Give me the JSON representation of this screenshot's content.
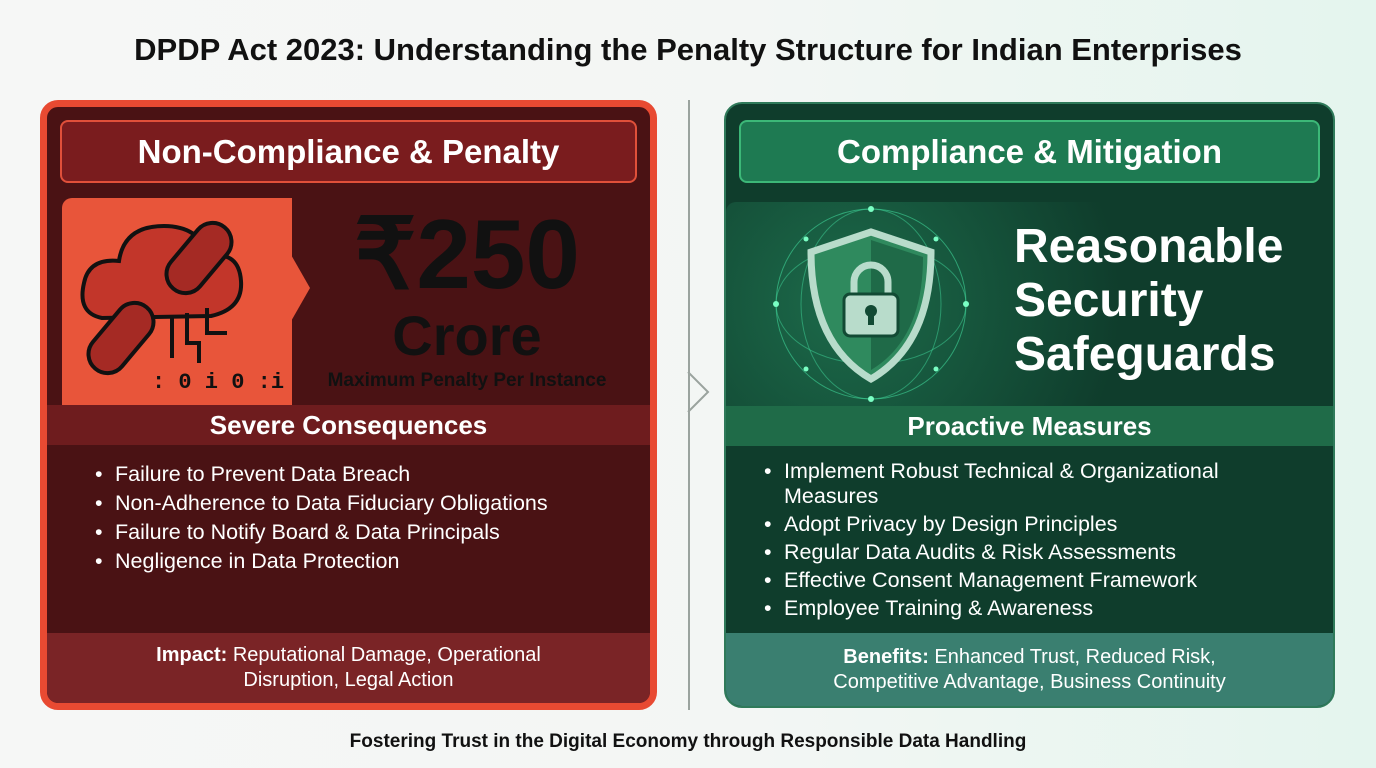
{
  "title": "DPDP Act 2023: Understanding the Penalty Structure for Indian Enterprises",
  "footer": "Fostering Trust in the Digital Economy through Responsible Data Handling",
  "left": {
    "header": "Non-Compliance & Penalty",
    "amount": "₹250",
    "unit": "Crore",
    "caption": "Maximum Penalty Per Instance",
    "icon": "broken-chain-cloud-icon",
    "band": "Severe Consequences",
    "items": [
      "Failure to Prevent Data Breach",
      "Non-Adherence to Data Fiduciary Obligations",
      "Failure to Notify Board & Data Principals",
      "Negligence in Data Protection"
    ],
    "footer_label": "Impact:",
    "footer_text": " Reputational Damage, Operational Disruption, Legal Action",
    "colors": {
      "border": "#e84a32",
      "body": "#4a1214",
      "hero_left": "#e8553a",
      "hero_right": "#f0804a"
    }
  },
  "right": {
    "header": "Compliance & Mitigation",
    "hero_lines": [
      "Reasonable",
      "Security",
      "Safeguards"
    ],
    "icon": "shield-lock-icon",
    "band": "Proactive Measures",
    "items": [
      "Implement Robust Technical & Organizational Measures",
      "Adopt Privacy by Design Principles",
      "Regular Data Audits & Risk Assessments",
      "Effective Consent Management Framework",
      "Employee Training & Awareness"
    ],
    "footer_label": "Benefits:",
    "footer_text": " Enhanced Trust, Reduced Risk, Competitive Advantage, Business Continuity",
    "colors": {
      "body": "#0f3d2c",
      "header": "#1e7a52",
      "band": "#1f6b48",
      "footer": "#3a7f70"
    }
  }
}
